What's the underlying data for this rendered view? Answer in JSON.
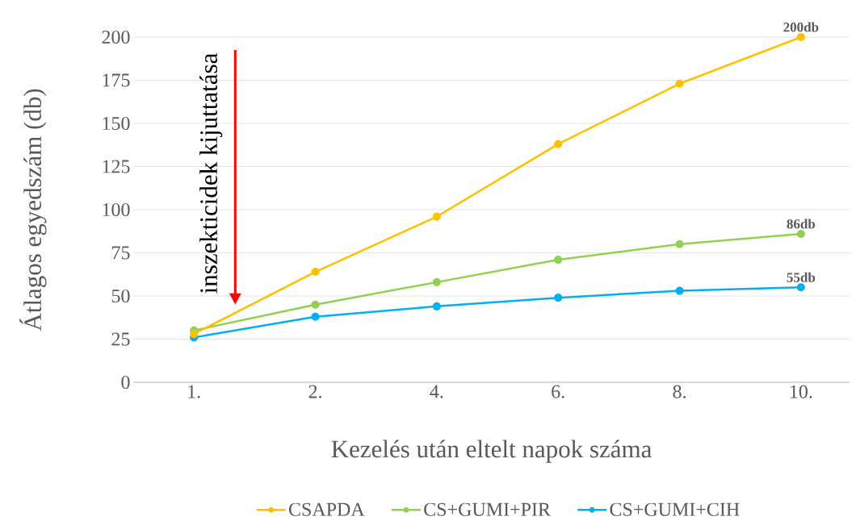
{
  "chart_data": {
    "type": "line",
    "ylabel": "Átlagos egyedszám (db)",
    "xlabel": "Kezelés után eltelt napok száma",
    "categories": [
      "1.",
      "2.",
      "4.",
      "6.",
      "8.",
      "10."
    ],
    "series": [
      {
        "name": "CSAPDA",
        "color": "#ffc000",
        "values": [
          28,
          64,
          96,
          138,
          173,
          200
        ],
        "value_labels": [
          null,
          null,
          null,
          null,
          null,
          "200db"
        ]
      },
      {
        "name": "CS+GUMI+PIR",
        "color": "#92d050",
        "values": [
          30,
          45,
          58,
          71,
          80,
          86
        ],
        "value_labels": [
          null,
          null,
          null,
          null,
          null,
          "86db"
        ]
      },
      {
        "name": "CS+GUMI+CIH",
        "color": "#00b0f0",
        "values": [
          26,
          38,
          44,
          49,
          53,
          55
        ],
        "value_labels": [
          null,
          null,
          null,
          null,
          null,
          "55db"
        ]
      }
    ],
    "ylim": [
      0,
      200
    ],
    "yticks": [
      0,
      25,
      50,
      75,
      100,
      125,
      150,
      175,
      200
    ],
    "grid": "y",
    "legend": "bottom",
    "marker": "circle",
    "line_style": "solid",
    "annotations": [
      "inszekticidek kijuttatása"
    ]
  }
}
